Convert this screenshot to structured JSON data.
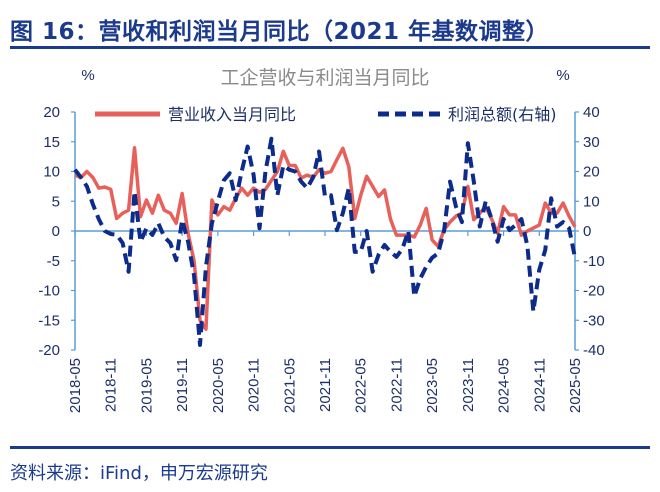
{
  "header": {
    "figure_title": "图 16：营收和利润当月同比（2021 年基数调整）"
  },
  "footer": {
    "source": "资料来源：iFind，申万宏源研究"
  },
  "colors": {
    "title": "#1b3a8c",
    "revenue": "#e8605a",
    "profit": "#0d2b8a",
    "axis": "#5b9bd5"
  },
  "chart_data": {
    "type": "line",
    "title": "工企营收与利润当月同比",
    "ylabel": "%",
    "y2label": "%",
    "ylim": [
      -20,
      20
    ],
    "y2lim": [
      -40,
      40
    ],
    "yticks": [
      20,
      15,
      10,
      5,
      0,
      -5,
      -10,
      -15,
      -20
    ],
    "y2ticks": [
      40,
      30,
      20,
      10,
      0,
      -10,
      -20,
      -30,
      -40
    ],
    "xticks": [
      "2018-05",
      "2018-11",
      "2019-05",
      "2019-11",
      "2020-05",
      "2020-11",
      "2021-05",
      "2021-11",
      "2022-05",
      "2022-11",
      "2023-05",
      "2023-11",
      "2024-05",
      "2024-11",
      "2025-05"
    ],
    "x_start": "2018-05",
    "x_end": "2025-05",
    "legend_position": "top",
    "grid": false,
    "series": [
      {
        "name": "营业收入当月同比",
        "axis": "left",
        "style": "solid",
        "values": [
          9.4,
          9.0,
          10.0,
          9.0,
          7.2,
          7.4,
          7.0,
          2.1,
          3.0,
          3.5,
          14.0,
          2.4,
          5.2,
          3.0,
          6.0,
          3.5,
          3.0,
          1.3,
          6.3,
          -0.4,
          -5.0,
          -15.0,
          -16.5,
          5.2,
          2.7,
          4.1,
          3.5,
          5.5,
          7.2,
          6.0,
          7.2,
          6.5,
          7.0,
          8.5,
          10.0,
          13.4,
          11.0,
          11.0,
          8.9,
          9.4,
          9.0,
          10.3,
          9.7,
          10.0,
          12.0,
          13.9,
          10.8,
          2.1,
          6.0,
          9.2,
          7.5,
          5.8,
          6.9,
          2.0,
          -0.7,
          -0.7,
          -0.7,
          -1.0,
          1.0,
          3.8,
          -1.5,
          -2.6,
          0.2,
          1.5,
          2.5,
          3.0,
          7.5,
          1.9,
          3.0,
          4.1,
          2.0,
          -0.4,
          4.1,
          2.7,
          2.7,
          -0.7,
          0.0,
          0.5,
          1.0,
          4.7,
          3.0,
          3.0,
          4.7,
          2.5,
          0.7
        ]
      },
      {
        "name": "利润总额(右轴)",
        "axis": "right",
        "style": "dashed",
        "values": [
          20.6,
          18,
          15,
          9,
          4,
          0,
          -1,
          -1.3,
          -4,
          -13.7,
          13.3,
          -3.6,
          0.9,
          -1.3,
          2.6,
          -2,
          -4,
          -9.8,
          3.7,
          -3.6,
          -15,
          -38.3,
          -12,
          2.6,
          10,
          17,
          19.4,
          10.4,
          20,
          28.4,
          18.9,
          0.9,
          20,
          31,
          12,
          22,
          20.6,
          20,
          16.6,
          14.4,
          18,
          26.7,
          11.6,
          12,
          0.3,
          6,
          14.4,
          -7,
          -7,
          0,
          -13.7,
          -8,
          -4.7,
          -7,
          -8.7,
          -6,
          0,
          -22,
          -16,
          -12,
          -9,
          -7.5,
          0,
          16.6,
          8.2,
          3,
          29.5,
          16.6,
          1.5,
          10,
          4,
          -3.6,
          4,
          0.3,
          2,
          4,
          -5,
          -27,
          -13,
          -6.4,
          11,
          1.5,
          3,
          1,
          -9
        ]
      }
    ]
  }
}
